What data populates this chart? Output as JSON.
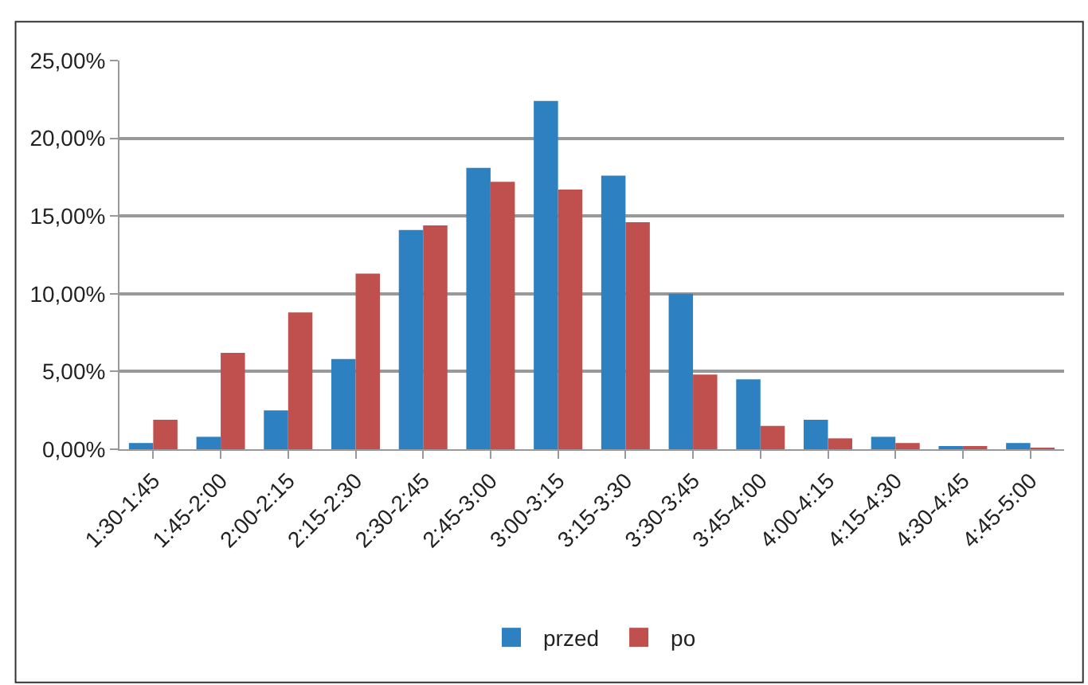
{
  "chart_data": {
    "type": "bar",
    "categories": [
      "1:30-1:45",
      "1:45-2:00",
      "2:00-2:15",
      "2:15-2:30",
      "2:30-2:45",
      "2:45-3:00",
      "3:00-3:15",
      "3:15-3:30",
      "3:30-3:45",
      "3:45-4:00",
      "4:00-4:15",
      "4:15-4:30",
      "4:30-4:45",
      "4:45-5:00"
    ],
    "series": [
      {
        "name": "przed",
        "color": "#2e81c1",
        "values": [
          0.4,
          0.8,
          2.5,
          5.8,
          14.1,
          18.1,
          22.4,
          17.6,
          10.0,
          4.5,
          1.9,
          0.8,
          0.2,
          0.4
        ]
      },
      {
        "name": "po",
        "color": "#c0504d",
        "values": [
          1.9,
          6.2,
          8.8,
          11.3,
          14.4,
          17.2,
          16.7,
          14.6,
          4.8,
          1.5,
          0.7,
          0.4,
          0.2,
          0.1
        ]
      }
    ],
    "ylim": [
      0,
      25
    ],
    "yticks": [
      {
        "value": 0,
        "label": "0,00%"
      },
      {
        "value": 5,
        "label": "5,00%"
      },
      {
        "value": 10,
        "label": "10,00%"
      },
      {
        "value": 15,
        "label": "15,00%"
      },
      {
        "value": 20,
        "label": "20,00%"
      },
      {
        "value": 25,
        "label": "25,00%"
      }
    ],
    "grid": "y",
    "legend": "bottom"
  }
}
